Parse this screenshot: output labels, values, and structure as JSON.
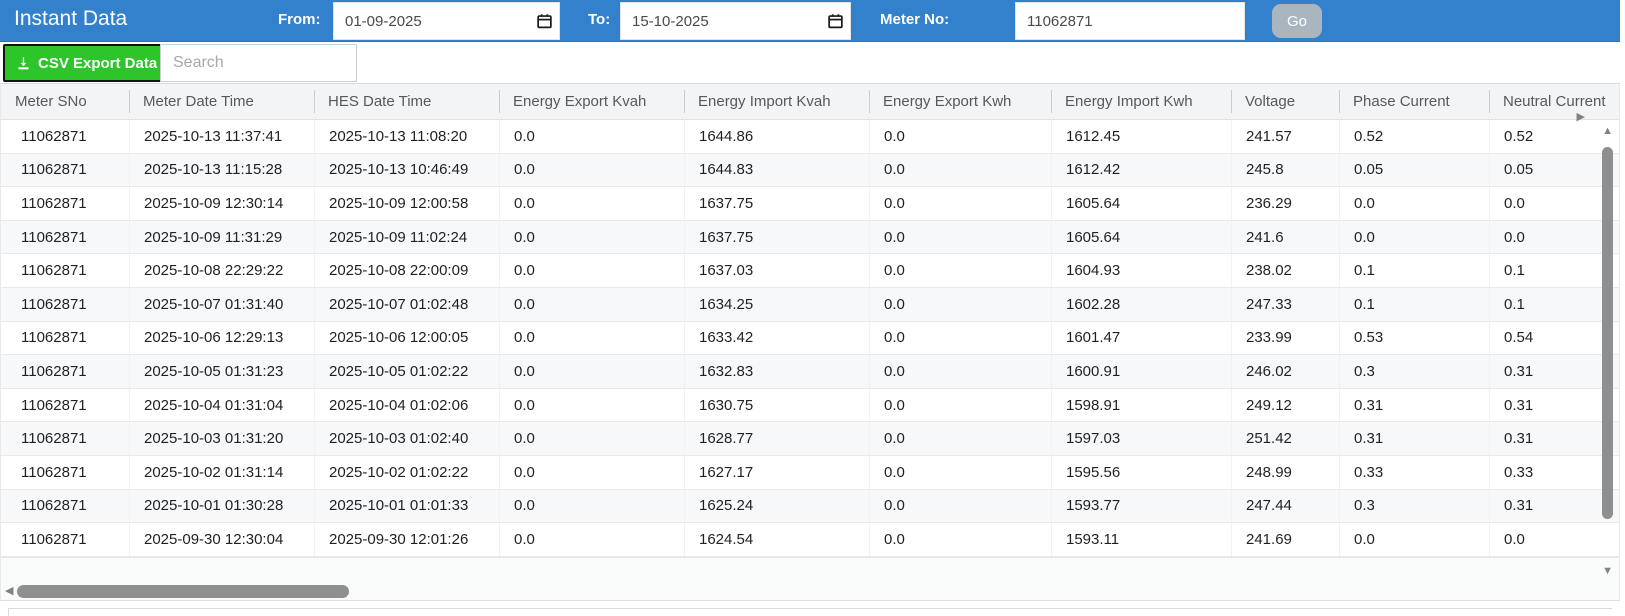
{
  "header": {
    "title": "Instant Data",
    "from_label": "From:",
    "from_value": "01-09-2025",
    "to_label": "To:",
    "to_value": "15-10-2025",
    "meter_label": "Meter No:",
    "meter_value": "11062871",
    "go_label": "Go"
  },
  "toolbar": {
    "csv_button_label": "CSV Export Data",
    "csv_button_icon": "download-icon",
    "search_placeholder": "Search"
  },
  "table": {
    "columns": [
      "Meter SNo",
      "Meter Date Time",
      "HES Date Time",
      "Energy Export Kvah",
      "Energy Import Kvah",
      "Energy Export Kwh",
      "Energy Import Kwh",
      "Voltage",
      "Phase Current",
      "Neutral Current"
    ],
    "rows": [
      [
        "11062871",
        "2025-10-13 11:37:41",
        "2025-10-13 11:08:20",
        "0.0",
        "1644.86",
        "0.0",
        "1612.45",
        "241.57",
        "0.52",
        "0.52"
      ],
      [
        "11062871",
        "2025-10-13 11:15:28",
        "2025-10-13 10:46:49",
        "0.0",
        "1644.83",
        "0.0",
        "1612.42",
        "245.8",
        "0.05",
        "0.05"
      ],
      [
        "11062871",
        "2025-10-09 12:30:14",
        "2025-10-09 12:00:58",
        "0.0",
        "1637.75",
        "0.0",
        "1605.64",
        "236.29",
        "0.0",
        "0.0"
      ],
      [
        "11062871",
        "2025-10-09 11:31:29",
        "2025-10-09 11:02:24",
        "0.0",
        "1637.75",
        "0.0",
        "1605.64",
        "241.6",
        "0.0",
        "0.0"
      ],
      [
        "11062871",
        "2025-10-08 22:29:22",
        "2025-10-08 22:00:09",
        "0.0",
        "1637.03",
        "0.0",
        "1604.93",
        "238.02",
        "0.1",
        "0.1"
      ],
      [
        "11062871",
        "2025-10-07 01:31:40",
        "2025-10-07 01:02:48",
        "0.0",
        "1634.25",
        "0.0",
        "1602.28",
        "247.33",
        "0.1",
        "0.1"
      ],
      [
        "11062871",
        "2025-10-06 12:29:13",
        "2025-10-06 12:00:05",
        "0.0",
        "1633.42",
        "0.0",
        "1601.47",
        "233.99",
        "0.53",
        "0.54"
      ],
      [
        "11062871",
        "2025-10-05 01:31:23",
        "2025-10-05 01:02:22",
        "0.0",
        "1632.83",
        "0.0",
        "1600.91",
        "246.02",
        "0.3",
        "0.31"
      ],
      [
        "11062871",
        "2025-10-04 01:31:04",
        "2025-10-04 01:02:06",
        "0.0",
        "1630.75",
        "0.0",
        "1598.91",
        "249.12",
        "0.31",
        "0.31"
      ],
      [
        "11062871",
        "2025-10-03 01:31:20",
        "2025-10-03 01:02:40",
        "0.0",
        "1628.77",
        "0.0",
        "1597.03",
        "251.42",
        "0.31",
        "0.31"
      ],
      [
        "11062871",
        "2025-10-02 01:31:14",
        "2025-10-02 01:02:22",
        "0.0",
        "1627.17",
        "0.0",
        "1595.56",
        "248.99",
        "0.33",
        "0.33"
      ],
      [
        "11062871",
        "2025-10-01 01:30:28",
        "2025-10-01 01:01:33",
        "0.0",
        "1625.24",
        "0.0",
        "1593.77",
        "247.44",
        "0.3",
        "0.31"
      ],
      [
        "11062871",
        "2025-09-30 12:30:04",
        "2025-09-30 12:01:26",
        "0.0",
        "1624.54",
        "0.0",
        "1593.11",
        "241.69",
        "0.0",
        "0.0"
      ]
    ]
  },
  "icons": {
    "calendar": "calendar-icon",
    "scroll_up": "▲",
    "scroll_down": "▼",
    "scroll_left": "◀",
    "scroll_right": "▶"
  },
  "colors": {
    "header_blue": "#3380cc",
    "csv_green": "#2ec52a",
    "go_gray": "#a9b6bf",
    "header_row_bg": "#f3f4f5",
    "alt_row_bg": "#f6f8f9",
    "scroll_thumb": "#8d8f91"
  }
}
